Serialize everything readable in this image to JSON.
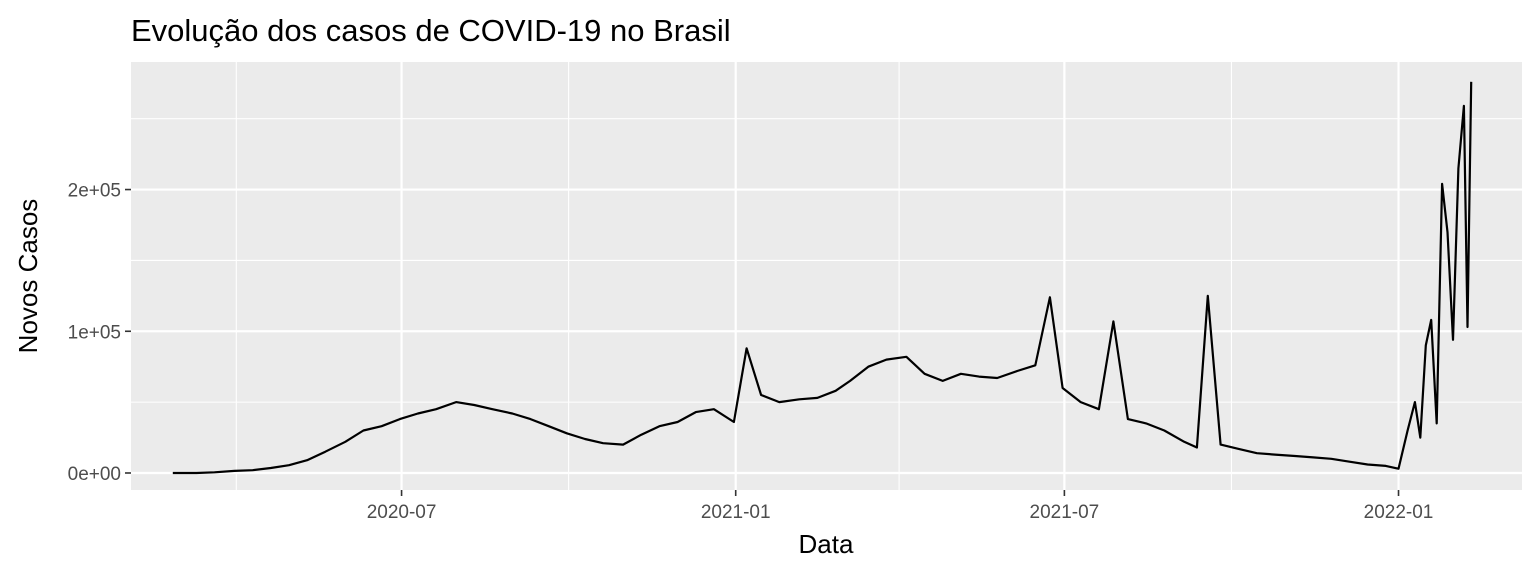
{
  "chart_data": {
    "type": "line",
    "title": "Evolução dos casos de COVID-19 no Brasil",
    "xlabel": "Data",
    "ylabel": "Novos Casos",
    "x_axis": {
      "type": "date",
      "range": [
        "2020-02-03",
        "2022-03-10"
      ],
      "ticks": [
        {
          "value": "2020-07-01",
          "label": "2020-07"
        },
        {
          "value": "2021-01-01",
          "label": "2021-01"
        },
        {
          "value": "2021-07-01",
          "label": "2021-07"
        },
        {
          "value": "2022-01-01",
          "label": "2022-01"
        }
      ]
    },
    "y_axis": {
      "range": [
        -12000,
        290000
      ],
      "ticks": [
        {
          "value": 0,
          "label": "0e+00"
        },
        {
          "value": 100000,
          "label": "1e+05"
        },
        {
          "value": 200000,
          "label": "2e+05"
        }
      ]
    },
    "grid": true,
    "legend": "none",
    "colors": {
      "panel": "#ebebeb",
      "grid": "#ffffff",
      "line": "#000000",
      "tick_text": "#4d4d4d"
    },
    "series": [
      {
        "x": [
          "2020-02-26",
          "2020-03-10",
          "2020-03-20",
          "2020-03-31",
          "2020-04-10",
          "2020-04-20",
          "2020-04-30",
          "2020-05-10",
          "2020-05-20",
          "2020-05-31",
          "2020-06-10",
          "2020-06-20",
          "2020-06-30",
          "2020-07-10",
          "2020-07-20",
          "2020-07-31",
          "2020-08-10",
          "2020-08-20",
          "2020-08-31",
          "2020-09-10",
          "2020-09-20",
          "2020-09-30",
          "2020-10-10",
          "2020-10-20",
          "2020-10-31",
          "2020-11-10",
          "2020-11-20",
          "2020-11-30",
          "2020-12-10",
          "2020-12-20",
          "2020-12-31",
          "2021-01-07",
          "2021-01-15",
          "2021-01-25",
          "2021-02-05",
          "2021-02-15",
          "2021-02-25",
          "2021-03-05",
          "2021-03-15",
          "2021-03-25",
          "2021-04-05",
          "2021-04-15",
          "2021-04-25",
          "2021-05-05",
          "2021-05-15",
          "2021-05-25",
          "2021-06-05",
          "2021-06-15",
          "2021-06-23",
          "2021-06-30",
          "2021-07-10",
          "2021-07-20",
          "2021-07-28",
          "2021-08-05",
          "2021-08-15",
          "2021-08-25",
          "2021-09-05",
          "2021-09-12",
          "2021-09-18",
          "2021-09-25",
          "2021-10-05",
          "2021-10-15",
          "2021-10-25",
          "2021-11-05",
          "2021-11-15",
          "2021-11-25",
          "2021-12-05",
          "2021-12-15",
          "2021-12-25",
          "2022-01-01",
          "2022-01-06",
          "2022-01-10",
          "2022-01-13",
          "2022-01-16",
          "2022-01-19",
          "2022-01-22",
          "2022-01-25",
          "2022-01-28",
          "2022-01-31",
          "2022-02-03",
          "2022-02-06",
          "2022-02-08",
          "2022-02-10"
        ],
        "y": [
          0,
          0,
          500,
          1500,
          2000,
          3500,
          5500,
          9000,
          15000,
          22000,
          30000,
          33000,
          38000,
          42000,
          45000,
          50000,
          48000,
          45000,
          42000,
          38000,
          33000,
          28000,
          24000,
          21000,
          20000,
          27000,
          33000,
          36000,
          43000,
          45000,
          36000,
          88000,
          55000,
          50000,
          52000,
          53000,
          58000,
          65000,
          75000,
          80000,
          82000,
          70000,
          65000,
          70000,
          68000,
          67000,
          72000,
          76000,
          124000,
          60000,
          50000,
          45000,
          107000,
          38000,
          35000,
          30000,
          22000,
          18000,
          125000,
          20000,
          17000,
          14000,
          13000,
          12000,
          11000,
          10000,
          8000,
          6000,
          5000,
          3000,
          30000,
          50000,
          25000,
          90000,
          108000,
          35000,
          204000,
          170000,
          94000,
          215000,
          259000,
          103000,
          276000
        ]
      }
    ]
  }
}
